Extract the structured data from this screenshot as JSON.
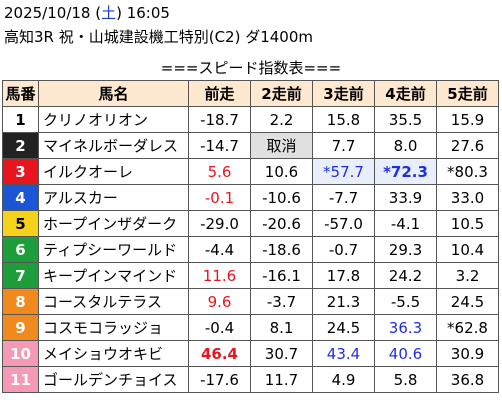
{
  "header": {
    "date_prefix": "2025/10/18 (",
    "day_of_week": "土",
    "date_suffix": ") 16:05",
    "race_title": "高知3R 祝・山城建設機工特別(C2) ダ1400m"
  },
  "subtitle": "===スピード指数表===",
  "columns": [
    "馬番",
    "馬名",
    "前走",
    "2走前",
    "3走前",
    "4走前",
    "5走前"
  ],
  "colors": {
    "header_bg": "#ffe8d0",
    "red": "#e8141e",
    "blue": "#1f2fe0",
    "cancel_bg": "#e0e0e0",
    "highlight_bg": "#e8eefa"
  },
  "rows": [
    {
      "num": "1",
      "name": "クリノオリオン",
      "num_bg": "#ffffff",
      "num_fg": "#000000",
      "vals": [
        "-18.7",
        "2.2",
        "15.8",
        "35.5",
        "15.9"
      ],
      "styles": [
        "",
        "",
        "",
        "",
        ""
      ]
    },
    {
      "num": "2",
      "name": "マイネルボーダレス",
      "num_bg": "#222222",
      "num_fg": "#ffffff",
      "vals": [
        "-14.7",
        "取消",
        "7.7",
        "8.0",
        "27.6"
      ],
      "styles": [
        "",
        "cancel",
        "",
        "",
        ""
      ]
    },
    {
      "num": "3",
      "name": "イルクオーレ",
      "num_bg": "#e8141e",
      "num_fg": "#ffffff",
      "vals": [
        "5.6",
        "10.6",
        "*57.7",
        "*72.3",
        "*80.3"
      ],
      "styles": [
        "red",
        "",
        "blue hl",
        "blue bold hl",
        ""
      ]
    },
    {
      "num": "4",
      "name": "アルスカー",
      "num_bg": "#1a56d6",
      "num_fg": "#ffffff",
      "vals": [
        "-0.1",
        "-10.6",
        "-7.7",
        "33.9",
        "33.0"
      ],
      "styles": [
        "red",
        "",
        "",
        "",
        ""
      ]
    },
    {
      "num": "5",
      "name": "ホープインザダーク",
      "num_bg": "#f5d21a",
      "num_fg": "#000000",
      "vals": [
        "-29.0",
        "-20.6",
        "-57.0",
        "-4.1",
        "10.5"
      ],
      "styles": [
        "",
        "",
        "",
        "",
        ""
      ]
    },
    {
      "num": "6",
      "name": "ティプシーワールド",
      "num_bg": "#1e9e3a",
      "num_fg": "#ffffff",
      "vals": [
        "-4.4",
        "-18.6",
        "-0.7",
        "29.3",
        "10.4"
      ],
      "styles": [
        "",
        "",
        "",
        "",
        ""
      ]
    },
    {
      "num": "7",
      "name": "キープインマインド",
      "num_bg": "#1e9e3a",
      "num_fg": "#ffffff",
      "vals": [
        "11.6",
        "-16.1",
        "17.8",
        "24.2",
        "3.2"
      ],
      "styles": [
        "red",
        "",
        "",
        "",
        ""
      ]
    },
    {
      "num": "8",
      "name": "コースタルテラス",
      "num_bg": "#f08a1c",
      "num_fg": "#ffffff",
      "vals": [
        "9.6",
        "-3.7",
        "21.3",
        "-5.5",
        "24.5"
      ],
      "styles": [
        "red",
        "",
        "",
        "",
        ""
      ]
    },
    {
      "num": "9",
      "name": "コスモコラッジョ",
      "num_bg": "#f08a1c",
      "num_fg": "#ffffff",
      "vals": [
        "-0.4",
        "8.1",
        "24.5",
        "36.3",
        "*62.8"
      ],
      "styles": [
        "",
        "",
        "",
        "blue",
        ""
      ]
    },
    {
      "num": "10",
      "name": "メイショウオキビ",
      "num_bg": "#f59ab4",
      "num_fg": "#ffffff",
      "vals": [
        "46.4",
        "30.7",
        "43.4",
        "40.6",
        "30.9"
      ],
      "styles": [
        "red bold",
        "",
        "blue",
        "blue",
        ""
      ]
    },
    {
      "num": "11",
      "name": "ゴールデンチョイス",
      "num_bg": "#f59ab4",
      "num_fg": "#ffffff",
      "vals": [
        "-17.6",
        "11.7",
        "4.9",
        "5.8",
        "36.8"
      ],
      "styles": [
        "",
        "",
        "",
        "",
        ""
      ]
    }
  ]
}
